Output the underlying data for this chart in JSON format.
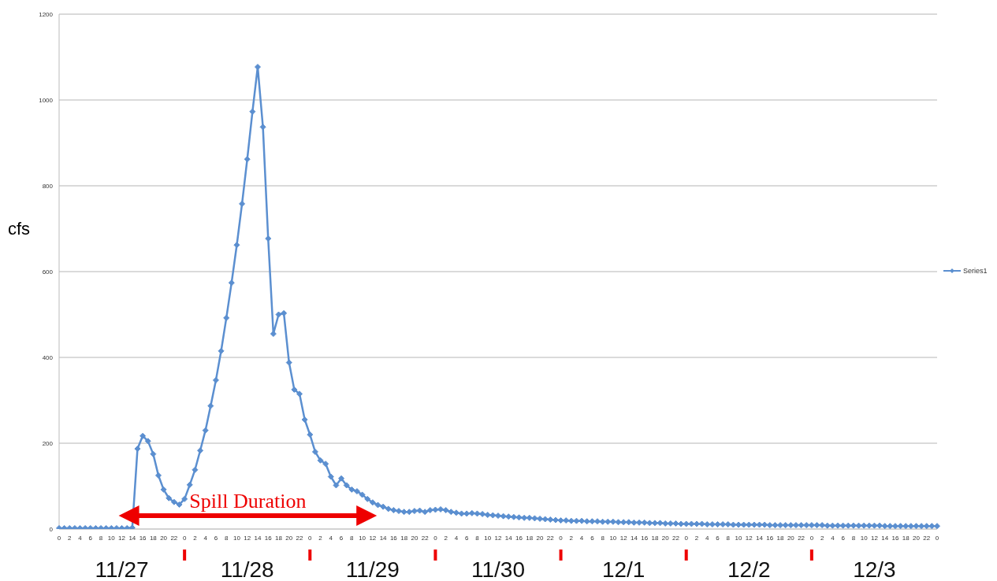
{
  "chart_data": {
    "type": "line",
    "ylabel": "cfs",
    "categories": [
      "0",
      null,
      "2",
      null,
      "4",
      null,
      "6",
      null,
      "8",
      null,
      "10",
      null,
      "12",
      null,
      "14",
      null,
      "16",
      null,
      "18",
      null,
      "20",
      null,
      "22",
      null,
      "0",
      null,
      "2",
      null,
      "4",
      null,
      "6",
      null,
      "8",
      null,
      "10",
      null,
      "12",
      null,
      "14",
      null,
      "16",
      null,
      "18",
      null,
      "20",
      null,
      "22",
      null,
      "0",
      null,
      "2",
      null,
      "4",
      null,
      "6",
      null,
      "8",
      null,
      "10",
      null,
      "12",
      null,
      "14",
      null,
      "16",
      null,
      "18",
      null,
      "20",
      null,
      "22",
      null,
      "0",
      null,
      "2",
      null,
      "4",
      null,
      "6",
      null,
      "8",
      null,
      "10",
      null,
      "12",
      null,
      "14",
      null,
      "16",
      null,
      "18",
      null,
      "20",
      null,
      "22",
      null,
      "0",
      null,
      "2",
      null,
      "4",
      null,
      "6",
      null,
      "8",
      null,
      "10",
      null,
      "12",
      null,
      "14",
      null,
      "16",
      null,
      "18",
      null,
      "20",
      null,
      "22",
      null,
      "0",
      null,
      "2",
      null,
      "4",
      null,
      "6",
      null,
      "8",
      null,
      "10",
      null,
      "12",
      null,
      "14",
      null,
      "16",
      null,
      "18",
      null,
      "20",
      null,
      "22",
      null,
      "0",
      null,
      "2",
      null,
      "4",
      null,
      "6",
      null,
      "8",
      null,
      "10",
      null,
      "12",
      null,
      "14",
      null,
      "16",
      null,
      "18",
      null,
      "20",
      null,
      "22",
      null,
      "0"
    ],
    "series": [
      {
        "name": "Series1",
        "color": "#5b8fd0",
        "values": [
          2,
          2,
          2,
          2,
          2,
          2,
          2,
          2,
          2,
          2,
          2,
          2,
          2,
          2,
          3,
          187,
          217,
          205,
          175,
          125,
          92,
          72,
          63,
          57,
          70,
          103,
          138,
          183,
          230,
          287,
          347,
          415,
          492,
          574,
          662,
          758,
          862,
          973,
          1077,
          937,
          677,
          455,
          500,
          503,
          388,
          325,
          315,
          255,
          220,
          180,
          160,
          152,
          122,
          102,
          118,
          102,
          92,
          88,
          80,
          70,
          62,
          56,
          52,
          47,
          44,
          42,
          40,
          40,
          42,
          43,
          40,
          44,
          45,
          46,
          44,
          40,
          38,
          36,
          36,
          37,
          36,
          35,
          33,
          32,
          31,
          30,
          29,
          28,
          27,
          26,
          26,
          25,
          24,
          23,
          22,
          21,
          20,
          20,
          19,
          19,
          19,
          18,
          18,
          18,
          17,
          17,
          17,
          16,
          16,
          16,
          15,
          15,
          15,
          14,
          14,
          14,
          13,
          13,
          13,
          12,
          12,
          12,
          12,
          12,
          11,
          11,
          11,
          11,
          11,
          10,
          10,
          10,
          10,
          10,
          10,
          10,
          9,
          9,
          9,
          9,
          9,
          9,
          9,
          9,
          9,
          9,
          9,
          8,
          8,
          8,
          8,
          8,
          8,
          8,
          8,
          8,
          8,
          8,
          7,
          7,
          7,
          7,
          7,
          7,
          7,
          7,
          7,
          7,
          7
        ]
      }
    ],
    "ylim": [
      0,
      1200
    ],
    "yticks": [
      0,
      200,
      400,
      600,
      800,
      1000,
      1200
    ],
    "grid": "y",
    "legend": "right",
    "marker": "diamond",
    "line_style": "solid",
    "annotations": [
      "Spill Duration",
      "11/27",
      "11/28",
      "11/29",
      "11/30",
      "12/1",
      "12/2",
      "12/3"
    ]
  }
}
